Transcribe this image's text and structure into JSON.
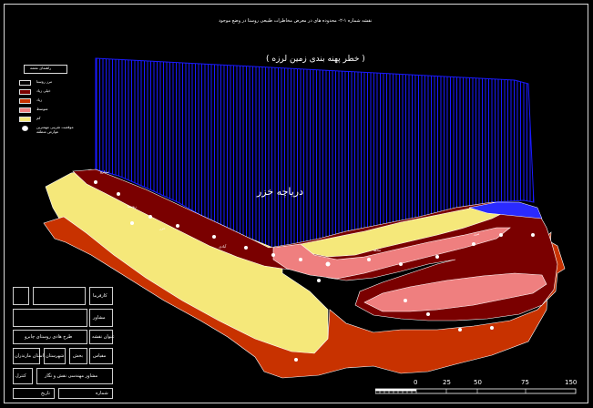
{
  "map": {
    "title": "نقشه شماره ۱-۲- محدوده های در معرض مخاطرات طبیعی روستا در وضع موجود",
    "hazard_zone_label": "( خطر پهنه بندی زمین لرزه )",
    "lake_label": "دریاچه خزر",
    "colors": {
      "background": "#000000",
      "hazard_hatch": "#1a1aff",
      "very_high": "#7a0000",
      "high": "#c83200",
      "medium": "#ef7f7f",
      "low": "#f5e87a",
      "outline": "#ffffff"
    },
    "places": [
      "سیارو",
      "روستا",
      "خزر",
      "آبادی",
      "محله",
      "مرز"
    ]
  },
  "legend": {
    "title": "راهنمای نقشه",
    "items": [
      {
        "label": "مرز روستا",
        "color": "#ffffff"
      },
      {
        "label": "خیلی زیاد",
        "color": "#7a0000"
      },
      {
        "label": "زیاد",
        "color": "#c83200"
      },
      {
        "label": "متوسط",
        "color": "#ef7f7f"
      },
      {
        "label": "کم",
        "color": "#f5e87a"
      },
      {
        "label": "موقعیت تقریبی مهمترین عوارض منطقه",
        "color": "#ffffff"
      }
    ]
  },
  "title_block": {
    "employer": "کارفرما",
    "consultant": "مشاور",
    "project": "طرح هادی روستای چابرو",
    "map_name": "عنوان نقشه",
    "province": "استان مازندران",
    "city": "شهرستان",
    "county": "بخش",
    "scale_label": "مقیاس",
    "prepared": "مشاور مهندسی نقش و نگار",
    "date_label": "تاریخ",
    "sheet_label": "شماره",
    "approved": "کنترل"
  },
  "scale_bar": {
    "ticks": [
      "150",
      "75",
      "50",
      "25",
      "0"
    ]
  }
}
